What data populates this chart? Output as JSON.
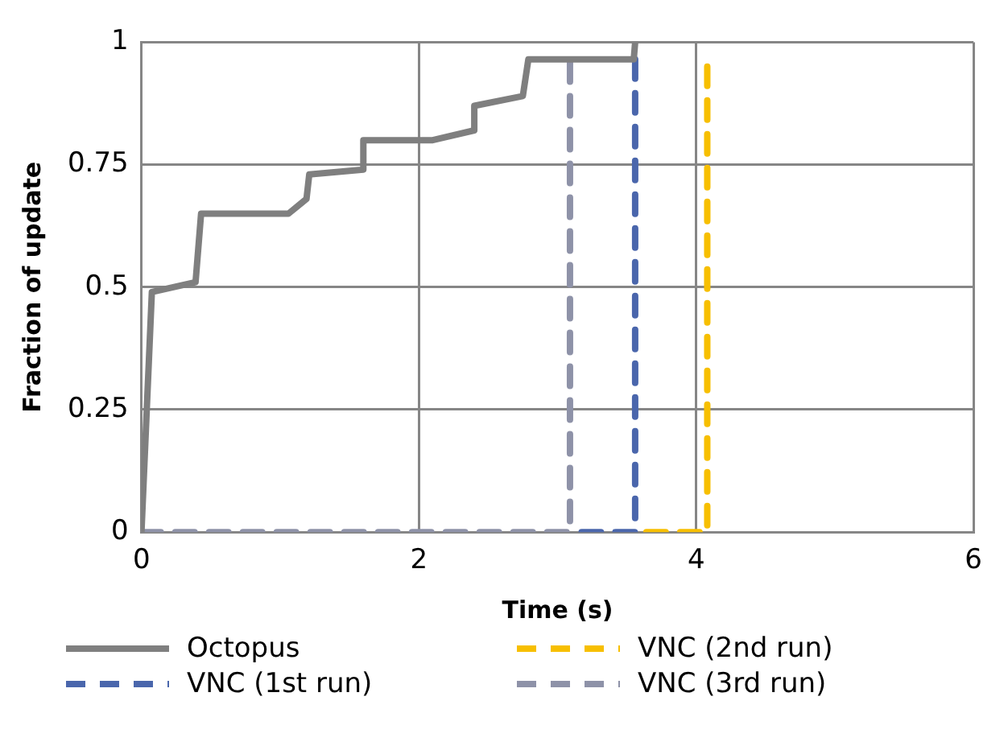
{
  "chart_data": {
    "type": "line",
    "xlabel": "Time (s)",
    "ylabel": "Fraction of update",
    "xlim": [
      0,
      6
    ],
    "xticks": [
      0,
      2,
      4,
      6
    ],
    "ylim": [
      0,
      1
    ],
    "yticks": [
      0,
      0.25,
      0.5,
      0.75,
      1
    ],
    "grid": true,
    "legend": "bottom",
    "marker": "none",
    "series": [
      {
        "name": "Octopus",
        "color": "#7f7f7f",
        "line_style": "solid",
        "x": [
          0,
          0.075,
          0.39,
          0.43,
          1.06,
          1.19,
          1.21,
          1.6,
          1.6,
          2.1,
          2.4,
          2.4,
          2.75,
          2.79,
          3.55,
          3.56
        ],
        "values": [
          0,
          0.49,
          0.51,
          0.65,
          0.65,
          0.68,
          0.73,
          0.74,
          0.8,
          0.8,
          0.82,
          0.87,
          0.89,
          0.965,
          0.965,
          1
        ]
      },
      {
        "name": "VNC (1st run)",
        "color": "#4a66ac",
        "line_style": "dashed",
        "x": [
          3.56,
          3.56,
          3.09
        ],
        "values": [
          0.965,
          0,
          0
        ]
      },
      {
        "name": "VNC (2nd run)",
        "color": "#f7bf00",
        "line_style": "dashed",
        "x": [
          4.08,
          4.08,
          3.56
        ],
        "values": [
          0.95,
          0,
          0
        ]
      },
      {
        "name": "VNC (3rd run)",
        "color": "#8e92a8",
        "line_style": "dashed",
        "x": [
          0,
          3.09,
          3.09
        ],
        "values": [
          0,
          0,
          0.965
        ]
      }
    ]
  }
}
